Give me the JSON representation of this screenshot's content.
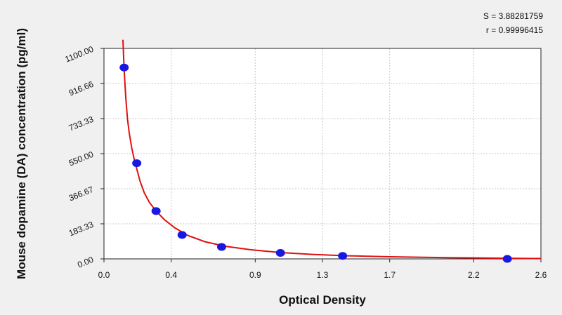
{
  "chart_data": {
    "type": "scatter",
    "xlabel": "Optical Density",
    "ylabel": "Mouse dopamine (DA) concentration (pg/ml)",
    "xlim": [
      0,
      2.6
    ],
    "ylim": [
      0,
      1100
    ],
    "x_ticks": [
      0.0,
      0.4,
      0.9,
      1.3,
      1.7,
      2.2,
      2.6
    ],
    "x_tick_labels": [
      "0.0",
      "0.4",
      "0.9",
      "1.3",
      "1.7",
      "2.2",
      "2.6"
    ],
    "y_ticks": [
      0,
      183.33,
      366.67,
      550,
      733.33,
      916.66,
      1100
    ],
    "y_tick_labels": [
      "0.00",
      "183.33",
      "366.67",
      "550.00",
      "733.33",
      "916.66",
      "1100.00"
    ],
    "grid": true,
    "points": {
      "x": [
        0.12,
        0.195,
        0.31,
        0.465,
        0.7,
        1.05,
        1.42,
        2.4
      ],
      "y": [
        1000,
        500,
        250,
        125,
        62.5,
        31.25,
        15.6,
        0
      ]
    },
    "fit_curve": {
      "x": [
        0.113,
        0.12,
        0.13,
        0.14,
        0.15,
        0.165,
        0.18,
        0.195,
        0.215,
        0.24,
        0.27,
        0.31,
        0.36,
        0.42,
        0.5,
        0.6,
        0.72,
        0.87,
        1.05,
        1.25,
        1.45,
        1.7,
        2.0,
        2.3,
        2.6
      ],
      "y": [
        1145,
        990,
        840,
        730,
        660,
        580,
        520,
        470,
        405,
        345,
        295,
        250,
        205,
        163,
        122,
        90,
        66,
        48,
        33,
        23,
        16,
        11,
        7,
        4,
        2
      ]
    },
    "colors": {
      "points": "#1818e0",
      "curve": "#e01010",
      "grid": "#c8c8c8"
    }
  },
  "stats": {
    "s_text": "S = 3.88281759",
    "r_text": "r = 0.99996415"
  }
}
